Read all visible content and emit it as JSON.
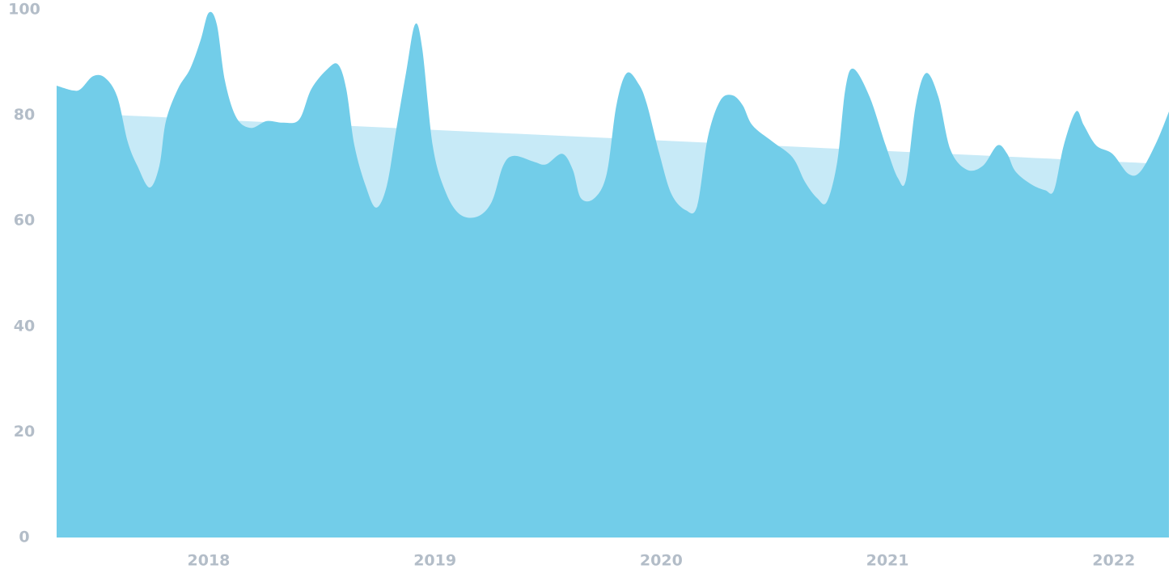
{
  "chart_data": {
    "type": "area",
    "xlim": [
      2017.328,
      2022.244
    ],
    "xticks": [
      2018,
      2019,
      2020,
      2021,
      2022
    ],
    "ylim": [
      0,
      100
    ],
    "yticks": [
      0,
      20,
      40,
      60,
      80,
      100
    ],
    "series": [
      {
        "color": "#c7eaf7",
        "x": [
          2017.614,
          2022.158
        ],
        "values": [
          80,
          70.9
        ]
      },
      {
        "color": "#72cde9",
        "x": [
          2017.328,
          2017.399,
          2017.435,
          2017.489,
          2017.542,
          2017.596,
          2017.642,
          2017.685,
          2017.739,
          2017.782,
          2017.811,
          2017.864,
          2017.918,
          2017.964,
          2018.0,
          2018.036,
          2018.072,
          2018.122,
          2018.186,
          2018.257,
          2018.329,
          2018.4,
          2018.454,
          2018.526,
          2018.572,
          2018.608,
          2018.644,
          2018.694,
          2018.74,
          2018.787,
          2018.829,
          2018.872,
          2018.912,
          2018.944,
          2018.99,
          2019.044,
          2019.108,
          2019.187,
          2019.251,
          2019.301,
          2019.348,
          2019.437,
          2019.491,
          2019.562,
          2019.609,
          2019.645,
          2019.705,
          2019.759,
          2019.802,
          2019.848,
          2019.902,
          2019.938,
          2019.992,
          2020.045,
          2020.109,
          2020.159,
          2020.206,
          2020.26,
          2020.313,
          2020.36,
          2020.403,
          2020.492,
          2020.581,
          2020.635,
          2020.689,
          2020.732,
          2020.778,
          2020.814,
          2020.85,
          2020.921,
          2020.992,
          2021.046,
          2021.082,
          2021.125,
          2021.171,
          2021.225,
          2021.278,
          2021.35,
          2021.421,
          2021.486,
          2021.529,
          2021.565,
          2021.636,
          2021.697,
          2021.736,
          2021.779,
          2021.833,
          2021.868,
          2021.922,
          2021.994,
          2022.065,
          2022.119,
          2022.19,
          2022.244
        ],
        "values": [
          85.6,
          84.7,
          85,
          87.4,
          87.1,
          83.5,
          75,
          70.4,
          66.3,
          70.4,
          78.9,
          85,
          88.8,
          94.2,
          99.4,
          97.2,
          86.5,
          79.6,
          77.6,
          78.9,
          78.6,
          79.2,
          85,
          88.8,
          89.6,
          85,
          74.3,
          66.6,
          62.5,
          66.6,
          77.3,
          88,
          97.2,
          92.6,
          74.3,
          65.8,
          61.3,
          60.8,
          63.6,
          70.4,
          72.3,
          71.2,
          70.7,
          72.7,
          69.7,
          64.3,
          64.3,
          68.9,
          81.9,
          88,
          85.8,
          81.9,
          72.7,
          65.1,
          62,
          62.8,
          75.8,
          82.7,
          83.8,
          81.9,
          78.1,
          75,
          72,
          67.4,
          64.3,
          63.6,
          71.2,
          85,
          88.8,
          83.5,
          74.3,
          68.1,
          67.8,
          81.9,
          88,
          83.5,
          73.5,
          69.7,
          70.4,
          74.3,
          72.7,
          69.4,
          66.9,
          65.8,
          65.8,
          74.3,
          80.7,
          78.1,
          74.3,
          72.7,
          68.9,
          69.4,
          75,
          80.7
        ]
      }
    ]
  }
}
